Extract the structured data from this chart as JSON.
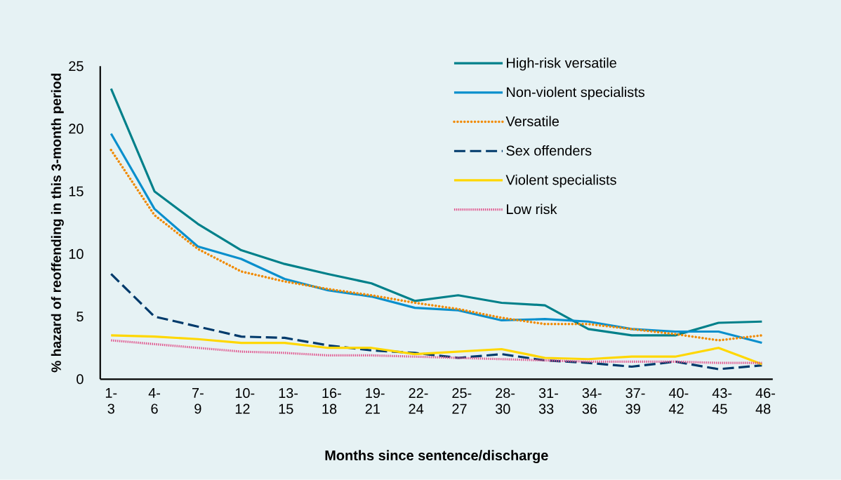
{
  "chart_data": {
    "type": "line",
    "xlabel": "Months since sentence/discharge",
    "ylabel": "% hazard of reoffending in this 3-month period",
    "categories": [
      "1-3",
      "4-6",
      "7-9",
      "10-12",
      "13-15",
      "16-18",
      "19-21",
      "22-24",
      "25-27",
      "28-30",
      "31-33",
      "34-36",
      "37-39",
      "40-42",
      "43-45",
      "46-48"
    ],
    "ylim": [
      0,
      25
    ],
    "yticks": [
      0,
      5,
      10,
      15,
      20,
      25
    ],
    "grid": false,
    "legend": "top right",
    "marker": "none",
    "series": [
      {
        "name": "High-risk versatile",
        "color": "#00808a",
        "line_style": "solid",
        "values": [
          23.2,
          15.0,
          12.4,
          10.3,
          9.2,
          8.4,
          7.65,
          6.25,
          6.7,
          6.1,
          5.9,
          4.0,
          3.5,
          3.5,
          4.5,
          4.6
        ]
      },
      {
        "name": "Non-violent specialists",
        "color": "#0a8fcc",
        "line_style": "solid",
        "values": [
          19.6,
          13.6,
          10.6,
          9.6,
          8.0,
          7.1,
          6.6,
          5.7,
          5.5,
          4.7,
          4.8,
          4.6,
          4.0,
          3.8,
          3.8,
          2.9
        ]
      },
      {
        "name": "Versatile",
        "color": "#f08a00",
        "line_style": "dotted",
        "values": [
          18.3,
          13.1,
          10.4,
          8.6,
          7.8,
          7.2,
          6.7,
          6.1,
          5.6,
          4.9,
          4.4,
          4.4,
          4.0,
          3.6,
          3.1,
          3.5
        ]
      },
      {
        "name": "Sex offenders",
        "color": "#003a6b",
        "line_style": "dashed",
        "values": [
          8.4,
          5.0,
          4.2,
          3.4,
          3.3,
          2.7,
          2.3,
          2.1,
          1.7,
          2.0,
          1.5,
          1.3,
          1.0,
          1.4,
          0.8,
          1.1
        ]
      },
      {
        "name": "Violent specialists",
        "color": "#ffd700",
        "line_style": "solid",
        "values": [
          3.5,
          3.4,
          3.2,
          2.9,
          2.9,
          2.5,
          2.5,
          2.0,
          2.2,
          2.4,
          1.7,
          1.6,
          1.8,
          1.8,
          2.5,
          1.2
        ]
      },
      {
        "name": "Low risk",
        "color": "#e0508a",
        "line_style": "densely dotted",
        "values": [
          3.1,
          2.8,
          2.5,
          2.2,
          2.1,
          1.9,
          1.9,
          1.8,
          1.7,
          1.6,
          1.5,
          1.4,
          1.4,
          1.4,
          1.3,
          1.3
        ]
      }
    ]
  }
}
